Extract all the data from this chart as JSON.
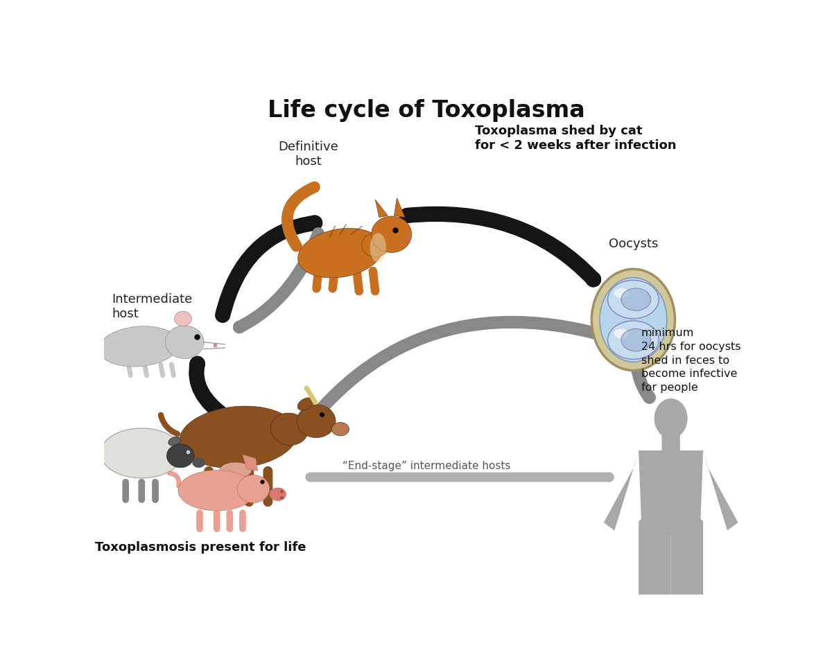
{
  "title": "Life cycle of Toxoplasma",
  "title_fontsize": 24,
  "title_fontweight": "bold",
  "bg_color": "#ffffff",
  "labels": {
    "definitive_host": "Definitive\nhost",
    "intermediate_host": "Intermediate\nhost",
    "oocysts": "Oocysts",
    "shed_text": "Toxoplasma shed by cat\nfor < 2 weeks after infection",
    "min_24hrs": "minimum\n24 hrs for oocysts\nshed in feces to\nbecome infective\nfor people",
    "end_stage": "“End-stage” intermediate hosts",
    "toxoplasmosis": "Toxoplasmosis present for life"
  },
  "cat_color": "#C87020",
  "mouse_color": "#C8C8C8",
  "oocyst_outer": "#C8BE88",
  "oocyst_inner": "#A0C0E0",
  "human_color": "#A8A8A8",
  "cow_color": "#8B5020",
  "sheep_body": "#E0E0DC",
  "sheep_head": "#404040",
  "pig_color": "#E8A090",
  "black_arrow": "#151515",
  "gray_arrow": "#888888",
  "light_gray_arrow": "#B0B0B0"
}
